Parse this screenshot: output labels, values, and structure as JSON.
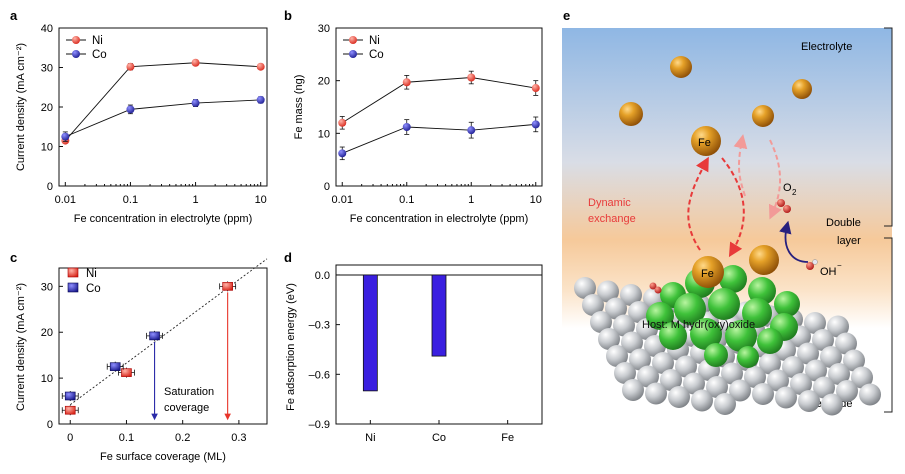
{
  "panel_labels": {
    "a": "a",
    "b": "b",
    "c": "c",
    "d": "d",
    "e": "e"
  },
  "colors": {
    "ni": "#e8352a",
    "co": "#2a2aa8",
    "bar": "#3a1fe0",
    "arrow_red": "#e83a3a"
  },
  "chart_data": [
    {
      "id": "a",
      "type": "line",
      "x_scale": "log",
      "x": [
        0.01,
        0.1,
        1,
        10
      ],
      "xlabel": "Fe concentration in electrolyte (ppm)",
      "ylabel": "Current density (mA cm⁻²)",
      "xticks": [
        "0.01",
        "0.1",
        "1",
        "10"
      ],
      "yticks": [
        "0",
        "10",
        "20",
        "30",
        "40"
      ],
      "ylim": [
        0,
        40
      ],
      "legend": "top-left",
      "series": [
        {
          "name": "Ni",
          "values": [
            11.5,
            30.2,
            31.2,
            30.2
          ],
          "err": [
            0.6,
            0.8,
            0.6,
            0.6
          ]
        },
        {
          "name": "Co",
          "values": [
            12.5,
            19.4,
            21.0,
            21.8
          ],
          "err": [
            1.2,
            1.1,
            0.9,
            0.8
          ]
        }
      ]
    },
    {
      "id": "b",
      "type": "line",
      "x_scale": "log",
      "x": [
        0.01,
        0.1,
        1,
        10
      ],
      "xlabel": "Fe concentration in electrolyte (ppm)",
      "ylabel": "Fe mass (ng)",
      "xticks": [
        "0.01",
        "0.1",
        "1",
        "10"
      ],
      "yticks": [
        "0",
        "10",
        "20",
        "30"
      ],
      "ylim": [
        0,
        30
      ],
      "legend": "top-left",
      "series": [
        {
          "name": "Ni",
          "values": [
            12.0,
            19.7,
            20.6,
            18.6
          ],
          "err": [
            1.2,
            1.3,
            1.2,
            1.4
          ]
        },
        {
          "name": "Co",
          "values": [
            6.2,
            11.2,
            10.6,
            11.7
          ],
          "err": [
            1.2,
            1.4,
            1.5,
            1.4
          ]
        }
      ]
    },
    {
      "id": "c",
      "type": "scatter",
      "xlabel": "Fe surface coverage (ML)",
      "ylabel": "Current density (mA cm⁻²)",
      "xticks": [
        "0",
        "0.1",
        "0.2",
        "0.3"
      ],
      "yticks": [
        "0",
        "10",
        "20",
        "30"
      ],
      "xlim": [
        -0.02,
        0.35
      ],
      "ylim": [
        0,
        34
      ],
      "legend": "top-left",
      "fit_line": {
        "x": [
          0.0,
          0.35
        ],
        "y": [
          4.2,
          36.0
        ]
      },
      "series": [
        {
          "name": "Ni",
          "x": [
            0.0,
            0.1,
            0.28
          ],
          "y": [
            3.0,
            11.2,
            30.0
          ]
        },
        {
          "name": "Co",
          "x": [
            0.0,
            0.08,
            0.15
          ],
          "y": [
            6.1,
            12.5,
            19.2
          ]
        }
      ],
      "annotations": {
        "saturation_line1": "Saturation",
        "saturation_line2": "coverage"
      }
    },
    {
      "id": "d",
      "type": "bar",
      "categories": [
        "Ni",
        "Co",
        "Fe"
      ],
      "values": [
        -0.7,
        -0.49,
        0.0
      ],
      "ylabel": "Fe adsorption energy (eV)",
      "yticks": [
        "0.0",
        "–0.3",
        "–0.6",
        "–0.9"
      ],
      "ylim": [
        -0.9,
        0.06
      ]
    }
  ],
  "schematic": {
    "electrolyte": "Electrolyte",
    "double_label": "Double",
    "layer_label": "layer",
    "electrode": "Electrode",
    "dynamic": "Dynamic",
    "exchange": "exchange",
    "fe": "Fe",
    "o2": "O",
    "o2_sub": "2",
    "oh": "OH",
    "oh_sup": "−",
    "host": "Host: M hydr(oxy)oxide"
  }
}
